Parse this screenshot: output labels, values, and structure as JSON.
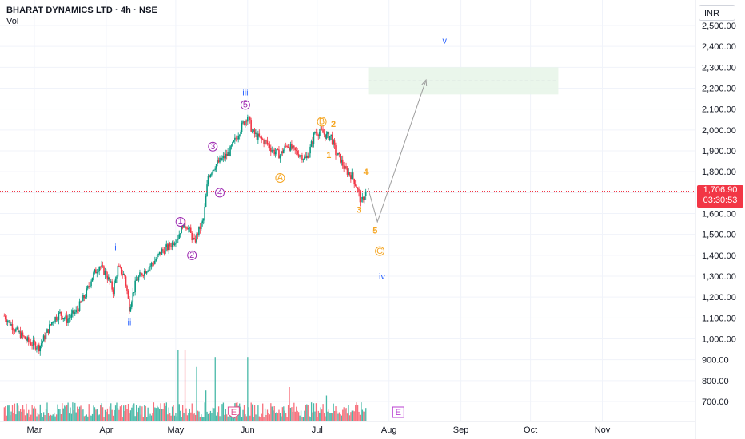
{
  "header": {
    "title": "BHARAT DYNAMICS LTD · 4h · NSE",
    "subtitle": "Vol"
  },
  "currency": "INR",
  "last_price": {
    "value": "1,706.90",
    "countdown": "03:30:53"
  },
  "colors": {
    "up": "#089981",
    "down": "#f23645",
    "vol_up": "#48b9a8",
    "vol_down": "#f7707c",
    "wave_purple": "#9c27b0",
    "wave_orange": "#f5a623",
    "wave_blue": "#2962ff",
    "target_zone": "#e8f5e9",
    "projection": "#9e9e9e",
    "grid": "#f0f3fa",
    "price_line": "#f23645"
  },
  "chart_data": {
    "type": "candlestick",
    "title": "BHARAT DYNAMICS LTD · 4h · NSE",
    "ylim": [
      650,
      2560
    ],
    "y_ticks": [
      700,
      800,
      900,
      1000,
      1100,
      1200,
      1300,
      1400,
      1500,
      1600,
      1700,
      1800,
      1900,
      2000,
      2100,
      2200,
      2300,
      2400,
      2500
    ],
    "y_tick_labels": [
      "700.00",
      "800.00",
      "900.00",
      "1,000.00",
      "1,100.00",
      "1,200.00",
      "1,300.00",
      "1,400.00",
      "1,500.00",
      "1,600.00",
      "1,700.00",
      "1,800.00",
      "1,900.00",
      "2,000.00",
      "2,100.00",
      "2,200.00",
      "2,300.00",
      "2,400.00",
      "2,500.00"
    ],
    "x_ticks": [
      {
        "label": "Mar",
        "day": 1
      },
      {
        "label": "Apr",
        "day": 32
      },
      {
        "label": "May",
        "day": 62
      },
      {
        "label": "Jun",
        "day": 93
      },
      {
        "label": "Jul",
        "day": 123
      },
      {
        "label": "Aug",
        "day": 154
      },
      {
        "label": "Sep",
        "day": 185
      },
      {
        "label": "Oct",
        "day": 215
      },
      {
        "label": "Nov",
        "day": 246
      }
    ],
    "grid": true,
    "anchors": [
      [
        -12,
        1110
      ],
      [
        -7,
        1040
      ],
      [
        -2,
        990
      ],
      [
        3,
        960
      ],
      [
        5,
        1000
      ],
      [
        9,
        1090
      ],
      [
        12,
        1120
      ],
      [
        15,
        1090
      ],
      [
        19,
        1130
      ],
      [
        23,
        1210
      ],
      [
        26,
        1300
      ],
      [
        29,
        1350
      ],
      [
        32,
        1310
      ],
      [
        35,
        1230
      ],
      [
        37,
        1340
      ],
      [
        40,
        1300
      ],
      [
        42,
        1150
      ],
      [
        45,
        1280
      ],
      [
        48,
        1320
      ],
      [
        52,
        1360
      ],
      [
        56,
        1420
      ],
      [
        59,
        1440
      ],
      [
        63,
        1490
      ],
      [
        65,
        1550
      ],
      [
        67,
        1540
      ],
      [
        70,
        1460
      ],
      [
        72,
        1520
      ],
      [
        74,
        1570
      ],
      [
        76,
        1780
      ],
      [
        79,
        1830
      ],
      [
        82,
        1860
      ],
      [
        85,
        1890
      ],
      [
        88,
        1960
      ],
      [
        91,
        2030
      ],
      [
        93,
        2070
      ],
      [
        95,
        1990
      ],
      [
        98,
        1960
      ],
      [
        101,
        1940
      ],
      [
        104,
        1900
      ],
      [
        107,
        1880
      ],
      [
        110,
        1930
      ],
      [
        113,
        1900
      ],
      [
        116,
        1880
      ],
      [
        118,
        1860
      ],
      [
        120,
        1910
      ],
      [
        122,
        1990
      ],
      [
        125,
        1990
      ],
      [
        127,
        1970
      ],
      [
        129,
        1970
      ],
      [
        131,
        1890
      ],
      [
        133,
        1860
      ],
      [
        135,
        1810
      ],
      [
        138,
        1780
      ],
      [
        140,
        1730
      ],
      [
        142,
        1650
      ],
      [
        144,
        1706.9
      ]
    ],
    "last_price": 1706.9,
    "volume_ylim": [
      0,
      280
    ],
    "volume_spikes": [
      [
        63,
        210
      ],
      [
        66,
        210
      ],
      [
        71,
        160
      ],
      [
        79,
        190
      ],
      [
        75,
        90
      ],
      [
        93,
        190
      ],
      [
        111,
        100
      ],
      [
        127,
        75
      ]
    ],
    "wave_labels": [
      {
        "text": "i",
        "day": 36,
        "price": 1440,
        "style": "plain",
        "color": "blue"
      },
      {
        "text": "ii",
        "day": 42,
        "price": 1080,
        "style": "plain",
        "color": "blue"
      },
      {
        "text": "iii",
        "day": 92,
        "price": 2180,
        "style": "plain",
        "color": "blue"
      },
      {
        "text": "iv",
        "day": 151,
        "price": 1300,
        "style": "plain",
        "color": "blue"
      },
      {
        "text": "v",
        "day": 178,
        "price": 2430,
        "style": "plain",
        "color": "blue"
      },
      {
        "text": "1",
        "day": 64,
        "price": 1560,
        "style": "circle",
        "color": "purple"
      },
      {
        "text": "2",
        "day": 69,
        "price": 1400,
        "style": "circle",
        "color": "purple"
      },
      {
        "text": "3",
        "day": 78,
        "price": 1920,
        "style": "circle",
        "color": "purple"
      },
      {
        "text": "4",
        "day": 81,
        "price": 1700,
        "style": "circle",
        "color": "purple"
      },
      {
        "text": "5",
        "day": 92,
        "price": 2120,
        "style": "circle",
        "color": "purple"
      },
      {
        "text": "A",
        "day": 107,
        "price": 1770,
        "style": "circle",
        "color": "orange"
      },
      {
        "text": "B",
        "day": 125,
        "price": 2040,
        "style": "circle",
        "color": "orange"
      },
      {
        "text": "C",
        "day": 150,
        "price": 1420,
        "style": "circle",
        "color": "orange"
      },
      {
        "text": "1",
        "day": 128,
        "price": 1880,
        "style": "plain",
        "color": "orange"
      },
      {
        "text": "2",
        "day": 130,
        "price": 2030,
        "style": "plain",
        "color": "orange"
      },
      {
        "text": "3",
        "day": 141,
        "price": 1620,
        "style": "plain",
        "color": "orange"
      },
      {
        "text": "4",
        "day": 144,
        "price": 1800,
        "style": "plain",
        "color": "orange"
      },
      {
        "text": "5",
        "day": 148,
        "price": 1520,
        "style": "plain",
        "color": "orange"
      }
    ],
    "projection": [
      [
        145,
        1720
      ],
      [
        149,
        1560
      ],
      [
        170,
        2240
      ]
    ],
    "target_zone": {
      "day_start": 145,
      "day_end": 227,
      "low": 2170,
      "high": 2300,
      "mid": 2235
    },
    "earnings_markers": [
      {
        "text": "E",
        "day": 87
      },
      {
        "text": "E",
        "day": 158
      }
    ]
  }
}
